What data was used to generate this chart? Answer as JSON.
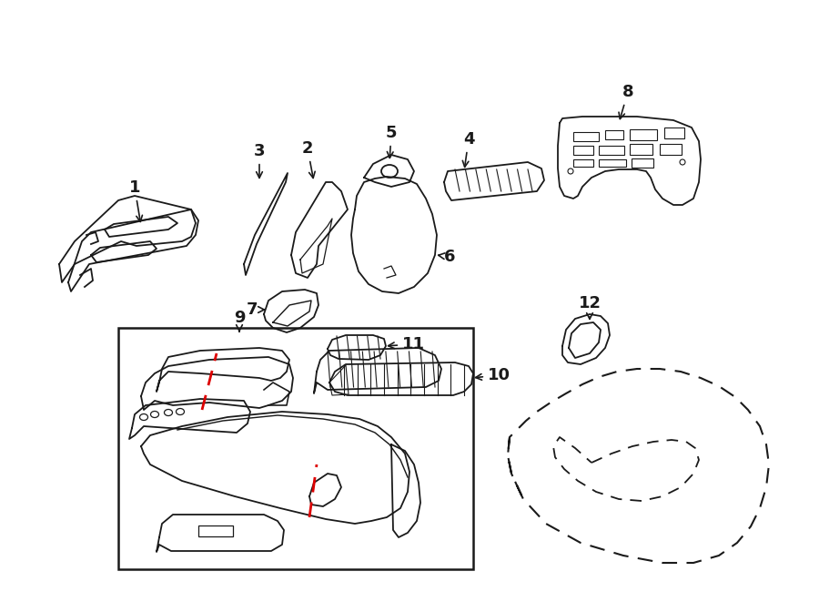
{
  "bg_color": "#ffffff",
  "line_color": "#1a1a1a",
  "red_color": "#dd0000",
  "fig_width": 9.0,
  "fig_height": 6.61
}
